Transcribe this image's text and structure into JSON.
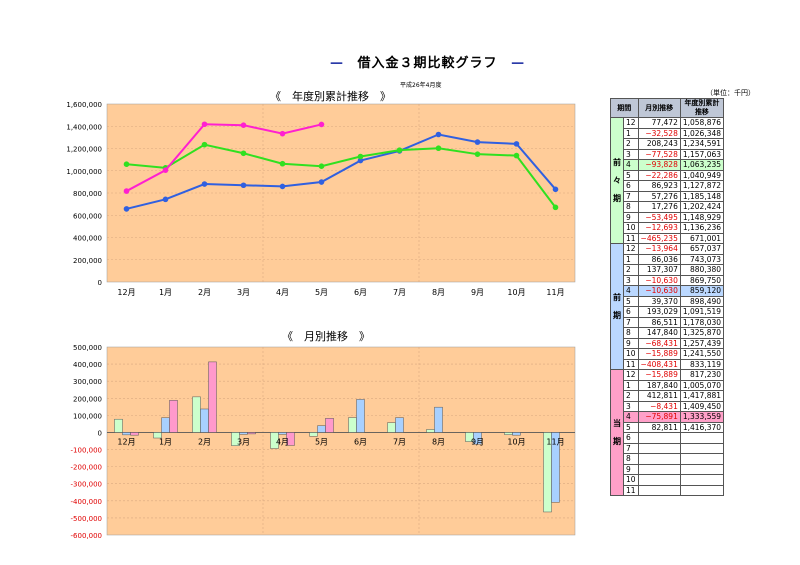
{
  "title": "借入金３期比較グラフ",
  "title_dash": "—",
  "date": "平成26年4月度",
  "colors": {
    "zen_zen": "#3060e0",
    "zen": "#30e020",
    "tou": "#ff20d0",
    "plot_bg": "#ffcc99"
  },
  "chart_data": [
    {
      "type": "line",
      "title": "《　年度別累計推移　》",
      "categories": [
        "12月",
        "1月",
        "2月",
        "3月",
        "4月",
        "5月",
        "6月",
        "7月",
        "8月",
        "9月",
        "10月",
        "11月"
      ],
      "ylim": [
        0,
        1600000
      ],
      "yticks": [
        "0",
        "200,000",
        "400,000",
        "600,000",
        "800,000",
        "1,000,000",
        "1,200,000",
        "1,400,000",
        "1,600,000"
      ],
      "series": [
        {
          "values": [
            657037,
            743073,
            880380,
            869750,
            859120,
            898490,
            1091519,
            1178030,
            1325870,
            1257439,
            1241550,
            833119
          ]
        },
        {
          "values": [
            1058876,
            1026348,
            1234591,
            1157063,
            1063235,
            1040949,
            1127872,
            1185148,
            1202424,
            1148929,
            1136236,
            671001
          ]
        },
        {
          "values": [
            817230,
            1005070,
            1417881,
            1409450,
            1333559,
            1416370,
            null,
            null,
            null,
            null,
            null,
            null
          ]
        }
      ]
    },
    {
      "type": "bar",
      "title": "《　月別推移　》",
      "categories": [
        "12月",
        "1月",
        "2月",
        "3月",
        "4月",
        "5月",
        "6月",
        "7月",
        "8月",
        "9月",
        "10月",
        "11月"
      ],
      "ylim": [
        -600000,
        500000
      ],
      "yticks": [
        "-600,000",
        "-500,000",
        "-400,000",
        "-300,000",
        "-200,000",
        "-100,000",
        "0",
        "100,000",
        "200,000",
        "300,000",
        "400,000",
        "500,000"
      ],
      "series": [
        {
          "values": [
            77472,
            -32528,
            208243,
            -77528,
            -93828,
            -22286,
            86923,
            57276,
            17276,
            -53495,
            -12693,
            -465235
          ]
        },
        {
          "values": [
            -13964,
            86036,
            137307,
            -10630,
            -10630,
            39370,
            193029,
            86511,
            147840,
            -68431,
            -15889,
            -408431
          ]
        },
        {
          "values": [
            -15889,
            187840,
            412811,
            -8431,
            -75891,
            82811,
            null,
            null,
            null,
            null,
            null,
            null
          ]
        }
      ]
    }
  ],
  "table": {
    "unit": "（単位：千円）",
    "headers": [
      "期間",
      "月別推移",
      "年度別累計推移"
    ],
    "periods": [
      {
        "label": "前々期",
        "hl": "g",
        "rows": [
          [
            "12",
            "77,472",
            "1,058,876"
          ],
          [
            "1",
            "−32,528",
            "1,026,348"
          ],
          [
            "2",
            "208,243",
            "1,234,591"
          ],
          [
            "3",
            "−77,528",
            "1,157,063"
          ],
          [
            "4",
            "−93,828",
            "1,063,235"
          ],
          [
            "5",
            "−22,286",
            "1,040,949"
          ],
          [
            "6",
            "86,923",
            "1,127,872"
          ],
          [
            "7",
            "57,276",
            "1,185,148"
          ],
          [
            "8",
            "17,276",
            "1,202,424"
          ],
          [
            "9",
            "−53,495",
            "1,148,929"
          ],
          [
            "10",
            "−12,693",
            "1,136,236"
          ],
          [
            "11",
            "−465,235",
            "671,001"
          ]
        ]
      },
      {
        "label": "前期",
        "hl": "b",
        "rows": [
          [
            "12",
            "−13,964",
            "657,037"
          ],
          [
            "1",
            "86,036",
            "743,073"
          ],
          [
            "2",
            "137,307",
            "880,380"
          ],
          [
            "3",
            "−10,630",
            "869,750"
          ],
          [
            "4",
            "−10,630",
            "859,120"
          ],
          [
            "5",
            "39,370",
            "898,490"
          ],
          [
            "6",
            "193,029",
            "1,091,519"
          ],
          [
            "7",
            "86,511",
            "1,178,030"
          ],
          [
            "8",
            "147,840",
            "1,325,870"
          ],
          [
            "9",
            "−68,431",
            "1,257,439"
          ],
          [
            "10",
            "−15,889",
            "1,241,550"
          ],
          [
            "11",
            "−408,431",
            "833,119"
          ]
        ]
      },
      {
        "label": "当期",
        "hl": "p",
        "rows": [
          [
            "12",
            "−15,889",
            "817,230"
          ],
          [
            "1",
            "187,840",
            "1,005,070"
          ],
          [
            "2",
            "412,811",
            "1,417,881"
          ],
          [
            "3",
            "−8,431",
            "1,409,450"
          ],
          [
            "4",
            "−75,891",
            "1,333,559"
          ],
          [
            "5",
            "82,811",
            "1,416,370"
          ],
          [
            "6",
            "",
            ""
          ],
          [
            "7",
            "",
            ""
          ],
          [
            "8",
            "",
            ""
          ],
          [
            "9",
            "",
            ""
          ],
          [
            "10",
            "",
            ""
          ],
          [
            "11",
            "",
            ""
          ]
        ]
      }
    ]
  }
}
